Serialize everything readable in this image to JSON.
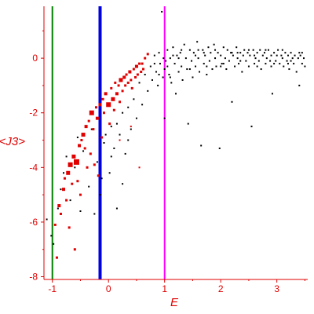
{
  "chart_data": {
    "type": "scatter",
    "title": "",
    "xlabel": "E",
    "ylabel": "<J3>",
    "xlim": [
      -1.15,
      3.55
    ],
    "ylim": [
      -8.1,
      1.9
    ],
    "x_ticks": [
      -1,
      0,
      1,
      2,
      3
    ],
    "y_ticks": [
      0,
      -2,
      -4,
      -6,
      -8
    ],
    "grid": false,
    "legend": "none",
    "colors": {
      "axis": "#e00000",
      "small_points": "#000000",
      "large_points": "#e00000",
      "line_green": "#008000",
      "line_blue": "#0000e0",
      "line_magenta": "#ff00ff"
    },
    "vertical_lines": [
      {
        "x": -1.0,
        "color": "#008000",
        "width": 2
      },
      {
        "x": -0.15,
        "color": "#0000e0",
        "width": 4
      },
      {
        "x": 1.0,
        "color": "#ff00ff",
        "width": 2
      }
    ],
    "series": [
      {
        "color": "#e00000",
        "marker": "square",
        "points": [
          [
            -0.95,
            -6.1
          ],
          [
            -0.92,
            -7.3
          ],
          [
            -0.88,
            -5.4
          ],
          [
            -0.85,
            -5.7
          ],
          [
            -0.8,
            -4.8
          ],
          [
            -0.78,
            -4.4
          ],
          [
            -0.75,
            -5.2
          ],
          [
            -0.72,
            -4.2
          ],
          [
            -0.7,
            -6.2
          ],
          [
            -0.68,
            -3.9
          ],
          [
            -0.65,
            -4.6
          ],
          [
            -0.62,
            -3.6
          ],
          [
            -0.6,
            -7.0
          ],
          [
            -0.57,
            -3.8
          ],
          [
            -0.55,
            -4.5
          ],
          [
            -0.52,
            -3.2
          ],
          [
            -0.5,
            -5.0
          ],
          [
            -0.48,
            -3.0
          ],
          [
            -0.45,
            -2.8
          ],
          [
            -0.42,
            -3.3
          ],
          [
            -0.4,
            -2.5
          ],
          [
            -0.38,
            -4.0
          ],
          [
            -0.35,
            -2.3
          ],
          [
            -0.32,
            -3.5
          ],
          [
            -0.3,
            -2.0
          ],
          [
            -0.27,
            -2.6
          ],
          [
            -0.25,
            -3.9
          ],
          [
            -0.22,
            -1.8
          ],
          [
            -0.2,
            -2.2
          ],
          [
            -0.18,
            -4.3
          ],
          [
            -0.15,
            -1.7
          ],
          [
            -0.12,
            -2.9
          ],
          [
            -0.1,
            -1.5
          ],
          [
            -0.08,
            -2.0
          ],
          [
            -0.05,
            -1.3
          ],
          [
            0.0,
            -1.7
          ],
          [
            0.02,
            -2.4
          ],
          [
            0.05,
            -1.1
          ],
          [
            0.08,
            -1.5
          ],
          [
            0.1,
            -1.9
          ],
          [
            0.12,
            -0.9
          ],
          [
            0.15,
            -1.3
          ],
          [
            0.18,
            -1.0
          ],
          [
            0.2,
            -1.6
          ],
          [
            0.22,
            -0.8
          ],
          [
            0.25,
            -1.2
          ],
          [
            0.28,
            -0.7
          ],
          [
            0.3,
            -1.0
          ],
          [
            0.32,
            -0.6
          ],
          [
            0.35,
            -0.9
          ],
          [
            0.38,
            -0.5
          ],
          [
            0.4,
            -0.8
          ],
          [
            0.42,
            -1.1
          ],
          [
            0.45,
            -0.4
          ],
          [
            0.48,
            -0.7
          ],
          [
            0.5,
            -0.3
          ],
          [
            0.52,
            -0.6
          ],
          [
            0.55,
            -0.2
          ],
          [
            0.58,
            -0.5
          ],
          [
            0.6,
            -0.2
          ],
          [
            0.62,
            -0.4
          ],
          [
            0.65,
            0.0
          ],
          [
            0.7,
            0.15
          ],
          [
            0.4,
            -2.5
          ],
          [
            0.2,
            -3.0
          ],
          [
            0.55,
            -4.0
          ]
        ],
        "sizes": [
          3,
          3,
          4,
          3,
          4,
          3,
          3,
          5,
          3,
          6,
          3,
          5,
          3,
          7,
          3,
          4,
          3,
          3,
          5,
          3,
          4,
          3,
          3,
          3,
          6,
          3,
          3,
          3,
          4,
          3,
          4,
          3,
          3,
          3,
          4,
          6,
          3,
          3,
          5,
          3,
          3,
          4,
          3,
          3,
          5,
          3,
          4,
          3,
          3,
          3,
          4,
          3,
          3,
          3,
          3,
          4,
          3,
          3,
          3,
          3,
          3,
          3,
          3,
          2,
          2,
          2
        ]
      },
      {
        "color": "#000000",
        "marker": "square",
        "points": [
          [
            -1.1,
            -5.9
          ],
          [
            -1.02,
            -6.5
          ],
          [
            -0.98,
            -6.8
          ],
          [
            -0.9,
            -5.5
          ],
          [
            -0.85,
            -4.8
          ],
          [
            -0.8,
            -4.2
          ],
          [
            -0.75,
            -3.6
          ],
          [
            -0.68,
            -5.2
          ],
          [
            -0.6,
            -4.0
          ],
          [
            -0.55,
            -2.9
          ],
          [
            -0.5,
            -5.6
          ],
          [
            -0.45,
            -3.4
          ],
          [
            -0.35,
            -4.7
          ],
          [
            -0.3,
            -2.6
          ],
          [
            -0.25,
            -5.7
          ],
          [
            -0.2,
            -3.8
          ],
          [
            -0.12,
            -4.4
          ],
          [
            -0.08,
            -3.1
          ],
          [
            0.02,
            -4.2
          ],
          [
            0.05,
            -2.5
          ],
          [
            0.1,
            -3.3
          ],
          [
            0.15,
            -5.5
          ],
          [
            0.2,
            -2.8
          ],
          [
            0.25,
            -2.0
          ],
          [
            0.3,
            -3.5
          ],
          [
            0.35,
            -1.8
          ],
          [
            0.4,
            -2.6
          ],
          [
            0.45,
            -1.5
          ],
          [
            0.5,
            -2.2
          ],
          [
            0.55,
            -0.9
          ],
          [
            0.6,
            -1.7
          ],
          [
            0.65,
            -0.6
          ],
          [
            0.7,
            -1.2
          ],
          [
            0.75,
            -0.3
          ],
          [
            0.78,
            -0.8
          ],
          [
            0.82,
            0.1
          ],
          [
            0.85,
            -0.5
          ],
          [
            0.88,
            -1.0
          ],
          [
            0.9,
            0.2
          ],
          [
            0.92,
            -0.2
          ],
          [
            0.95,
            1.7
          ],
          [
            0.97,
            -0.7
          ],
          [
            1.0,
            -0.4
          ],
          [
            1.0,
            -2.2
          ],
          [
            1.02,
            -0.1
          ],
          [
            1.05,
            0.3
          ],
          [
            1.08,
            -0.6
          ],
          [
            1.1,
            0.0
          ],
          [
            1.12,
            -0.9
          ],
          [
            1.15,
            0.4
          ],
          [
            1.18,
            -0.2
          ],
          [
            1.2,
            -1.3
          ],
          [
            1.22,
            0.1
          ],
          [
            1.25,
            -0.5
          ],
          [
            1.28,
            0.2
          ],
          [
            1.3,
            -0.3
          ],
          [
            1.32,
            -0.8
          ],
          [
            1.35,
            0.5
          ],
          [
            1.38,
            0.0
          ],
          [
            1.4,
            -0.4
          ],
          [
            1.42,
            -2.4
          ],
          [
            1.45,
            0.3
          ],
          [
            1.48,
            -0.1
          ],
          [
            1.5,
            -0.7
          ],
          [
            1.52,
            0.2
          ],
          [
            1.55,
            -0.3
          ],
          [
            1.58,
            0.6
          ],
          [
            1.6,
            0.0
          ],
          [
            1.62,
            -0.5
          ],
          [
            1.65,
            -3.2
          ],
          [
            1.68,
            0.3
          ],
          [
            1.7,
            -0.2
          ],
          [
            1.72,
            0.1
          ],
          [
            1.75,
            -0.6
          ],
          [
            1.78,
            0.4
          ],
          [
            1.8,
            -0.1
          ],
          [
            1.82,
            0.2
          ],
          [
            1.85,
            -0.4
          ],
          [
            1.88,
            0.5
          ],
          [
            1.9,
            0.0
          ],
          [
            1.92,
            -0.3
          ],
          [
            1.95,
            0.2
          ],
          [
            1.98,
            -3.3
          ],
          [
            2.0,
            0.1
          ],
          [
            2.02,
            -0.2
          ],
          [
            2.05,
            0.4
          ],
          [
            2.08,
            0.0
          ],
          [
            2.1,
            -0.4
          ],
          [
            2.12,
            0.3
          ],
          [
            2.15,
            -0.1
          ],
          [
            2.18,
            0.2
          ],
          [
            2.2,
            -1.6
          ],
          [
            2.22,
            0.1
          ],
          [
            2.25,
            -0.3
          ],
          [
            2.28,
            0.4
          ],
          [
            2.3,
            0.0
          ],
          [
            2.32,
            -0.2
          ],
          [
            2.35,
            0.2
          ],
          [
            2.38,
            -0.5
          ],
          [
            2.4,
            0.1
          ],
          [
            2.42,
            0.3
          ],
          [
            2.45,
            -0.1
          ],
          [
            2.48,
            0.2
          ],
          [
            2.5,
            -0.3
          ],
          [
            2.52,
            0.1
          ],
          [
            2.55,
            -2.5
          ],
          [
            2.58,
            0.3
          ],
          [
            2.6,
            -0.2
          ],
          [
            2.62,
            0.0
          ],
          [
            2.65,
            0.2
          ],
          [
            2.68,
            -0.1
          ],
          [
            2.7,
            0.3
          ],
          [
            2.72,
            -0.4
          ],
          [
            2.75,
            0.1
          ],
          [
            2.78,
            0.2
          ],
          [
            2.8,
            -0.2
          ],
          [
            2.82,
            0.0
          ],
          [
            2.85,
            0.3
          ],
          [
            2.88,
            -0.1
          ],
          [
            2.9,
            0.1
          ],
          [
            2.92,
            -1.3
          ],
          [
            2.95,
            0.2
          ],
          [
            2.98,
            -0.1
          ],
          [
            3.0,
            0.1
          ],
          [
            3.02,
            0.3
          ],
          [
            3.05,
            -0.2
          ],
          [
            3.08,
            0.1
          ],
          [
            3.1,
            0.0
          ],
          [
            3.12,
            -0.3
          ],
          [
            3.15,
            0.2
          ],
          [
            3.18,
            -0.1
          ],
          [
            3.2,
            0.1
          ],
          [
            3.22,
            -0.4
          ],
          [
            3.25,
            0.2
          ],
          [
            3.28,
            0.0
          ],
          [
            3.3,
            -0.2
          ],
          [
            3.32,
            0.1
          ],
          [
            3.35,
            -0.5
          ],
          [
            3.38,
            0.0
          ],
          [
            3.4,
            -1.0
          ],
          [
            3.42,
            0.1
          ],
          [
            3.45,
            -0.2
          ],
          [
            3.48,
            0.0
          ],
          [
            3.5,
            -0.3
          ],
          [
            1.1,
            -0.7
          ],
          [
            1.25,
            0.0
          ],
          [
            1.45,
            -0.4
          ],
          [
            1.6,
            0.3
          ],
          [
            1.75,
            -0.3
          ],
          [
            1.9,
            0.3
          ],
          [
            2.05,
            -0.2
          ],
          [
            2.2,
            0.2
          ],
          [
            2.35,
            -0.1
          ],
          [
            2.5,
            0.3
          ],
          [
            2.65,
            -0.3
          ],
          [
            2.8,
            0.3
          ],
          [
            2.95,
            -0.2
          ],
          [
            3.1,
            0.3
          ],
          [
            3.25,
            -0.1
          ],
          [
            3.4,
            0.2
          ],
          [
            0.82,
            -0.2
          ],
          [
            0.9,
            -0.6
          ],
          [
            0.98,
            0.0
          ],
          [
            1.05,
            -0.3
          ],
          [
            1.15,
            0.1
          ],
          [
            1.3,
            0.3
          ],
          [
            1.55,
            0.1
          ],
          [
            1.7,
            0.2
          ],
          [
            2.0,
            -0.3
          ],
          [
            2.3,
            0.2
          ],
          [
            2.6,
            0.1
          ],
          [
            2.9,
            -0.3
          ],
          [
            3.2,
            -0.2
          ],
          [
            3.45,
            0.2
          ],
          [
            -0.05,
            -2.8
          ],
          [
            0.05,
            -3.6
          ],
          [
            0.15,
            -2.4
          ],
          [
            0.25,
            -4.6
          ],
          [
            0.35,
            -3.0
          ],
          [
            -0.15,
            -5.0
          ]
        ],
        "sizes": []
      }
    ]
  }
}
